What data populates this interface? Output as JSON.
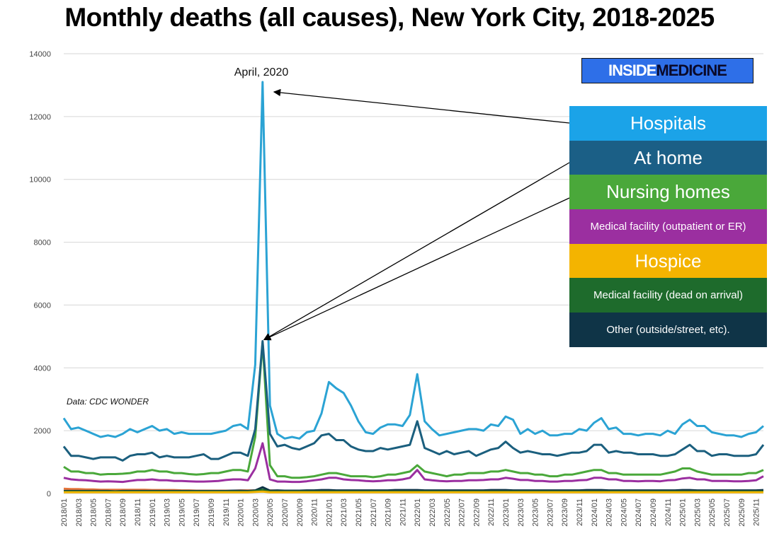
{
  "title": "Monthly deaths (all causes), New York City, 2018-2025",
  "logo": {
    "part1": "INSIDE",
    "part2": "MEDICINE"
  },
  "source_note": "Data: CDC WONDER",
  "annotation": "April, 2020",
  "chart_data": {
    "type": "line",
    "title": "Monthly deaths (all causes), New York City, 2018-2025",
    "xlabel": "",
    "ylabel": "",
    "ylim": [
      0,
      14000
    ],
    "yticks": [
      0,
      2000,
      4000,
      6000,
      8000,
      10000,
      12000,
      14000
    ],
    "grid": true,
    "legend_position": "right",
    "x_tick_labels": [
      "2018/01",
      "2018/03",
      "2018/05",
      "2018/07",
      "2018/09",
      "2018/11",
      "2019/01",
      "2019/03",
      "2019/05",
      "2019/07",
      "2019/09",
      "2019/11",
      "2020/01",
      "2020/03",
      "2020/05",
      "2020/07",
      "2020/09",
      "2020/11",
      "2021/01",
      "2021/03",
      "2021/05",
      "2021/07",
      "2021/09",
      "2021/11",
      "2022/01",
      "2022/03",
      "2022/05",
      "2022/07",
      "2022/09",
      "2022/11",
      "2023/01",
      "2023/03",
      "2023/05",
      "2023/07",
      "2023/09",
      "2023/11",
      "2024/01",
      "2024/03",
      "2024/05",
      "2024/07",
      "2024/09",
      "2024/11",
      "2025/01",
      "2025/03",
      "2025/05",
      "2025/07",
      "2025/09",
      "2025/11"
    ],
    "x": [
      "2018/01",
      "2018/02",
      "2018/03",
      "2018/04",
      "2018/05",
      "2018/06",
      "2018/07",
      "2018/08",
      "2018/09",
      "2018/10",
      "2018/11",
      "2018/12",
      "2019/01",
      "2019/02",
      "2019/03",
      "2019/04",
      "2019/05",
      "2019/06",
      "2019/07",
      "2019/08",
      "2019/09",
      "2019/10",
      "2019/11",
      "2019/12",
      "2020/01",
      "2020/02",
      "2020/03",
      "2020/04",
      "2020/05",
      "2020/06",
      "2020/07",
      "2020/08",
      "2020/09",
      "2020/10",
      "2020/11",
      "2020/12",
      "2021/01",
      "2021/02",
      "2021/03",
      "2021/04",
      "2021/05",
      "2021/06",
      "2021/07",
      "2021/08",
      "2021/09",
      "2021/10",
      "2021/11",
      "2021/12",
      "2022/01",
      "2022/02",
      "2022/03",
      "2022/04",
      "2022/05",
      "2022/06",
      "2022/07",
      "2022/08",
      "2022/09",
      "2022/10",
      "2022/11",
      "2022/12",
      "2023/01",
      "2023/02",
      "2023/03",
      "2023/04",
      "2023/05",
      "2023/06",
      "2023/07",
      "2023/08",
      "2023/09",
      "2023/10",
      "2023/11",
      "2023/12",
      "2024/01",
      "2024/02",
      "2024/03",
      "2024/04",
      "2024/05",
      "2024/06",
      "2024/07",
      "2024/08",
      "2024/09",
      "2024/10",
      "2024/11",
      "2024/12",
      "2025/01",
      "2025/02",
      "2025/03",
      "2025/04",
      "2025/05",
      "2025/06",
      "2025/07",
      "2025/08",
      "2025/09",
      "2025/10",
      "2025/11",
      "2025/12"
    ],
    "series": [
      {
        "name": "Hospitals",
        "color": "#2ba3d4",
        "values": [
          2400,
          2050,
          2100,
          2000,
          1900,
          1800,
          1850,
          1800,
          1900,
          2050,
          1950,
          2050,
          2150,
          2000,
          2050,
          1900,
          1950,
          1900,
          1900,
          1900,
          1900,
          1950,
          2000,
          2150,
          2200,
          2050,
          4100,
          13100,
          2800,
          1900,
          1750,
          1800,
          1750,
          1950,
          2000,
          2550,
          3550,
          3350,
          3200,
          2800,
          2300,
          1950,
          1900,
          2100,
          2200,
          2200,
          2150,
          2500,
          3800,
          2300,
          2050,
          1850,
          1900,
          1950,
          2000,
          2050,
          2050,
          2000,
          2200,
          2150,
          2450,
          2350,
          1900,
          2050,
          1900,
          2000,
          1850,
          1850,
          1900,
          1900,
          2050,
          2000,
          2250,
          2400,
          2050,
          2100,
          1900,
          1900,
          1850,
          1900,
          1900,
          1850,
          2000,
          1900,
          2200,
          2350,
          2150,
          2150,
          1950,
          1900,
          1850,
          1850,
          1800,
          1900,
          1950,
          2150
        ]
      },
      {
        "name": "At home",
        "color": "#1b5f7e",
        "values": [
          1500,
          1200,
          1200,
          1150,
          1100,
          1150,
          1150,
          1150,
          1050,
          1200,
          1250,
          1250,
          1300,
          1150,
          1200,
          1150,
          1150,
          1150,
          1200,
          1250,
          1100,
          1100,
          1200,
          1300,
          1300,
          1200,
          2050,
          4850,
          1900,
          1500,
          1550,
          1450,
          1400,
          1500,
          1600,
          1850,
          1900,
          1700,
          1700,
          1500,
          1400,
          1350,
          1350,
          1450,
          1400,
          1450,
          1500,
          1550,
          2300,
          1450,
          1350,
          1250,
          1350,
          1250,
          1300,
          1350,
          1200,
          1300,
          1400,
          1450,
          1650,
          1450,
          1300,
          1350,
          1300,
          1250,
          1250,
          1200,
          1250,
          1300,
          1300,
          1350,
          1550,
          1550,
          1300,
          1350,
          1300,
          1300,
          1250,
          1250,
          1250,
          1200,
          1200,
          1250,
          1400,
          1550,
          1350,
          1350,
          1200,
          1250,
          1250,
          1200,
          1200,
          1200,
          1250,
          1550
        ]
      },
      {
        "name": "Nursing homes",
        "color": "#4aa83a",
        "values": [
          850,
          700,
          700,
          650,
          650,
          600,
          620,
          620,
          630,
          650,
          700,
          700,
          750,
          700,
          700,
          650,
          650,
          620,
          600,
          620,
          650,
          650,
          700,
          750,
          750,
          700,
          1800,
          4800,
          900,
          550,
          550,
          500,
          500,
          520,
          550,
          600,
          650,
          650,
          600,
          550,
          550,
          550,
          520,
          550,
          600,
          600,
          650,
          700,
          900,
          700,
          650,
          600,
          550,
          600,
          600,
          650,
          650,
          650,
          700,
          700,
          750,
          700,
          650,
          650,
          600,
          600,
          550,
          550,
          600,
          600,
          650,
          700,
          750,
          750,
          650,
          650,
          600,
          600,
          600,
          600,
          600,
          600,
          650,
          700,
          800,
          800,
          700,
          650,
          600,
          600,
          600,
          600,
          600,
          650,
          650,
          750
        ]
      },
      {
        "name": "Medical facility (outpatient or ER)",
        "color": "#9b2fa0",
        "values": [
          500,
          450,
          430,
          420,
          400,
          380,
          390,
          380,
          370,
          400,
          430,
          430,
          450,
          420,
          420,
          400,
          400,
          390,
          380,
          380,
          390,
          400,
          430,
          450,
          450,
          420,
          800,
          1600,
          450,
          380,
          380,
          370,
          370,
          390,
          420,
          450,
          500,
          500,
          450,
          430,
          420,
          400,
          390,
          400,
          420,
          420,
          450,
          500,
          750,
          450,
          420,
          400,
          390,
          400,
          400,
          420,
          420,
          430,
          450,
          450,
          500,
          470,
          430,
          430,
          400,
          400,
          380,
          380,
          400,
          400,
          420,
          430,
          500,
          500,
          450,
          450,
          400,
          400,
          390,
          400,
          400,
          390,
          420,
          430,
          480,
          500,
          450,
          450,
          400,
          400,
          400,
          390,
          390,
          400,
          420,
          550
        ]
      },
      {
        "name": "Hospice",
        "color": "#f0b400",
        "values": [
          40,
          40,
          40,
          40,
          40,
          40,
          40,
          40,
          40,
          40,
          40,
          40,
          40,
          40,
          40,
          40,
          40,
          40,
          40,
          40,
          40,
          40,
          40,
          40,
          40,
          40,
          50,
          60,
          40,
          40,
          40,
          40,
          40,
          40,
          40,
          40,
          40,
          40,
          40,
          40,
          40,
          40,
          40,
          40,
          40,
          40,
          40,
          40,
          40,
          40,
          40,
          40,
          40,
          40,
          40,
          40,
          40,
          40,
          40,
          40,
          40,
          40,
          40,
          40,
          40,
          40,
          40,
          40,
          40,
          40,
          40,
          40,
          40,
          40,
          40,
          40,
          40,
          40,
          40,
          40,
          40,
          40,
          40,
          40,
          40,
          40,
          40,
          40,
          40,
          40,
          40,
          40,
          40,
          40,
          40,
          40
        ]
      },
      {
        "name": "Medical facility (dead on arrival)",
        "color": "#1e6b2c",
        "values": [
          60,
          60,
          60,
          60,
          60,
          60,
          60,
          60,
          60,
          60,
          60,
          60,
          60,
          60,
          60,
          60,
          60,
          60,
          60,
          60,
          60,
          60,
          60,
          60,
          60,
          60,
          80,
          120,
          60,
          60,
          60,
          60,
          60,
          60,
          60,
          60,
          60,
          60,
          60,
          60,
          60,
          60,
          60,
          60,
          60,
          60,
          60,
          60,
          60,
          60,
          60,
          60,
          60,
          60,
          60,
          60,
          60,
          60,
          60,
          60,
          60,
          60,
          60,
          60,
          60,
          60,
          60,
          60,
          60,
          60,
          60,
          60,
          60,
          60,
          60,
          60,
          60,
          60,
          60,
          60,
          60,
          60,
          60,
          60,
          60,
          60,
          60,
          60,
          60,
          60,
          60,
          60,
          60,
          60,
          60,
          60
        ]
      },
      {
        "name": "Other (outside/street, etc).",
        "color": "#0e3446",
        "values": [
          80,
          80,
          80,
          80,
          80,
          80,
          80,
          70,
          80,
          80,
          80,
          80,
          80,
          80,
          80,
          80,
          80,
          80,
          80,
          80,
          80,
          80,
          80,
          90,
          90,
          80,
          100,
          200,
          90,
          100,
          90,
          90,
          90,
          100,
          100,
          110,
          110,
          100,
          100,
          100,
          100,
          100,
          100,
          100,
          100,
          110,
          110,
          110,
          110,
          100,
          100,
          100,
          100,
          100,
          100,
          100,
          100,
          100,
          110,
          110,
          110,
          100,
          100,
          100,
          100,
          100,
          100,
          100,
          100,
          100,
          100,
          110,
          110,
          110,
          100,
          100,
          100,
          100,
          100,
          100,
          100,
          100,
          100,
          100,
          110,
          110,
          100,
          100,
          100,
          100,
          100,
          100,
          100,
          100,
          100,
          110
        ]
      },
      {
        "name": "",
        "color": "#e8763a",
        "values": [
          150,
          140,
          140,
          130,
          130,
          120,
          120,
          120,
          120,
          120,
          120,
          120,
          110,
          110,
          110,
          110,
          100,
          100,
          90,
          90,
          90,
          90,
          90,
          90,
          100,
          100,
          100,
          100,
          100,
          90,
          80,
          70,
          60,
          60,
          50,
          50,
          50,
          50,
          50,
          50,
          50,
          50,
          50,
          50,
          50,
          50,
          50,
          50,
          50,
          50,
          50,
          50,
          50,
          50,
          50,
          50,
          50,
          50,
          50,
          50,
          50,
          50,
          50,
          50,
          50,
          50,
          50,
          50,
          50,
          50,
          50,
          50,
          50,
          50,
          50,
          50,
          50,
          50,
          50,
          50,
          50,
          50,
          50,
          50,
          50,
          50,
          50,
          50,
          50,
          50,
          50,
          50,
          50,
          50,
          50,
          50
        ]
      }
    ]
  },
  "legend": {
    "items": [
      {
        "label": "Hospitals",
        "color": "#1ba3e8",
        "size": "big"
      },
      {
        "label": "At home",
        "color": "#1b5f86",
        "size": "big"
      },
      {
        "label": "Nursing homes",
        "color": "#4aa83a",
        "size": "big"
      },
      {
        "label": "Medical facility (outpatient or ER)",
        "color": "#9b2fa0",
        "size": "small"
      },
      {
        "label": "Hospice",
        "color": "#f4b400",
        "size": "big"
      },
      {
        "label": "Medical facility (dead on arrival)",
        "color": "#1e6b2c",
        "size": "small"
      },
      {
        "label": "Other (outside/street, etc).",
        "color": "#0f3447",
        "size": "small"
      }
    ]
  }
}
